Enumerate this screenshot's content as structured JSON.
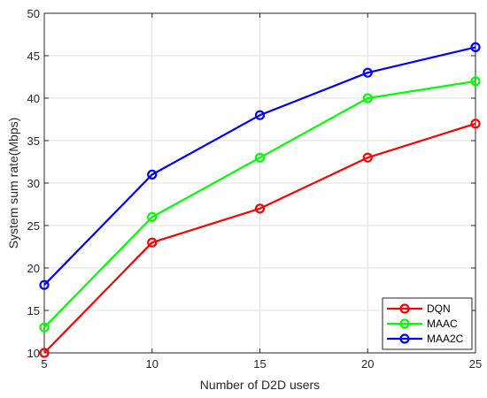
{
  "chart_data": {
    "type": "line",
    "title": "",
    "xlabel": "Number of D2D users",
    "ylabel": "System sum rate(Mbps)",
    "xlim": [
      5,
      25
    ],
    "ylim": [
      10,
      50
    ],
    "xticks": [
      5,
      10,
      15,
      20,
      25
    ],
    "yticks": [
      10,
      15,
      20,
      25,
      30,
      35,
      40,
      45,
      50
    ],
    "grid": true,
    "legend_position": "bottom-right",
    "x": [
      5,
      10,
      15,
      20,
      25
    ],
    "series": [
      {
        "name": "DQN",
        "color": "#ff0000",
        "values": [
          10,
          23,
          27,
          33,
          37
        ]
      },
      {
        "name": "MAAC",
        "color": "#00ff00",
        "values": [
          13,
          26,
          33,
          40,
          42
        ]
      },
      {
        "name": "MAA2C",
        "color": "#0000ff",
        "values": [
          18,
          31,
          38,
          43,
          46
        ]
      }
    ]
  }
}
